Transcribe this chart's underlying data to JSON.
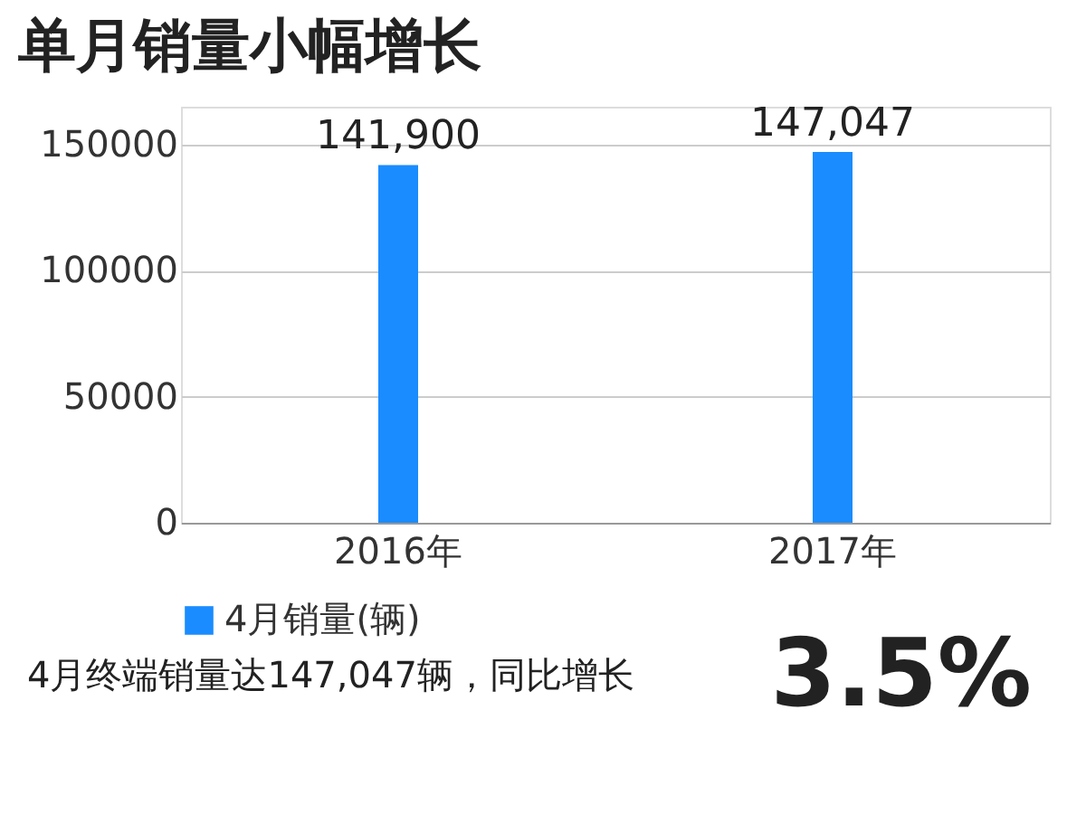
{
  "chart_data": {
    "type": "bar",
    "title": "单月销量小幅增长",
    "categories": [
      "2016年",
      "2017年"
    ],
    "series": [
      {
        "name": "4月销量(辆)",
        "color": "#1a8cff",
        "values": [
          141900,
          147047
        ],
        "value_labels": [
          "141,900",
          "147,047"
        ]
      }
    ],
    "ylim": [
      0,
      165000
    ],
    "yticks": [
      0,
      50000,
      100000,
      150000
    ],
    "grid": "y",
    "legend": "bottom",
    "annotations": [
      "4月终端销量达147,047辆，同比增长",
      "3.5%"
    ]
  }
}
